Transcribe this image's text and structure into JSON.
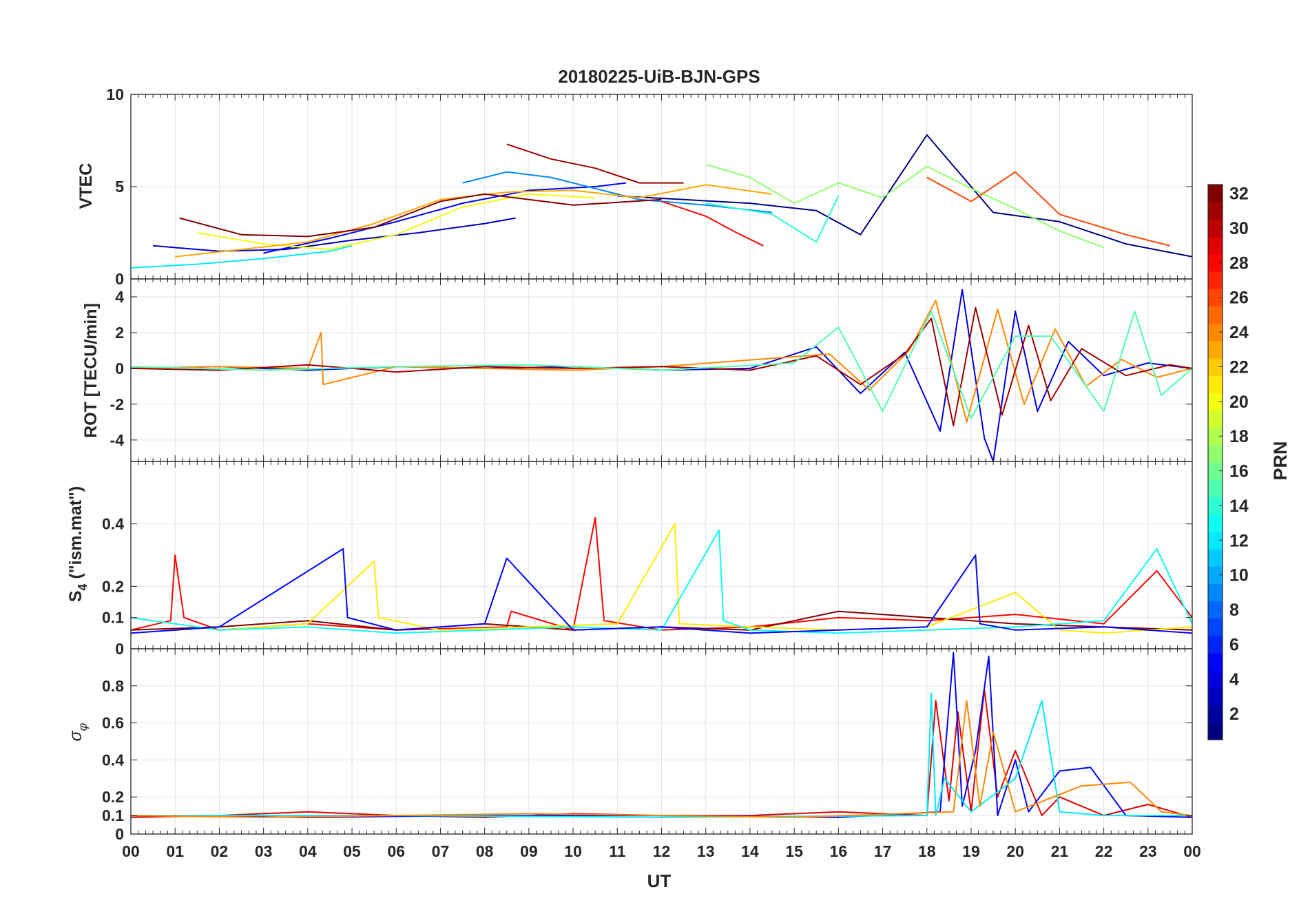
{
  "title": "20180225-UiB-BJN-GPS",
  "x_axis": {
    "label": "UT",
    "range": [
      0,
      24
    ],
    "ticks": [
      0,
      1,
      2,
      3,
      4,
      5,
      6,
      7,
      8,
      9,
      10,
      11,
      12,
      13,
      14,
      15,
      16,
      17,
      18,
      19,
      20,
      21,
      22,
      23,
      24
    ],
    "tick_labels": [
      "00",
      "01",
      "02",
      "03",
      "04",
      "05",
      "06",
      "07",
      "08",
      "09",
      "10",
      "11",
      "12",
      "13",
      "14",
      "15",
      "16",
      "17",
      "18",
      "19",
      "20",
      "21",
      "22",
      "23",
      "00"
    ]
  },
  "colorbar": {
    "label": "PRN",
    "range": [
      1,
      32
    ],
    "ticks": [
      2,
      4,
      6,
      8,
      10,
      12,
      14,
      16,
      18,
      20,
      22,
      24,
      26,
      28,
      30,
      32
    ],
    "tick_labels": [
      "2",
      "4",
      "6",
      "8",
      "10",
      "12",
      "14",
      "16",
      "18",
      "20",
      "22",
      "24",
      "26",
      "28",
      "30",
      "32"
    ],
    "colormap": "jet"
  },
  "chart_data": [
    {
      "type": "line",
      "panel": "vtec",
      "ylabel": "VTEC",
      "ylim": [
        0,
        10
      ],
      "yticks": [
        0,
        5,
        10
      ],
      "ytick_labels": [
        "0",
        "5",
        "10"
      ],
      "grid": true,
      "series": [
        {
          "prn": 1,
          "x": [
            11.0,
            12.5,
            14.0,
            15.5,
            16.5,
            18.0,
            19.5,
            21.0,
            22.5,
            24.0
          ],
          "values": [
            4.5,
            4.3,
            4.1,
            3.7,
            2.4,
            7.8,
            3.6,
            3.1,
            1.9,
            1.2
          ]
        },
        {
          "prn": 3,
          "x": [
            0.5,
            2.0,
            3.5,
            5.0,
            6.5,
            8.0,
            8.7
          ],
          "values": [
            1.8,
            1.5,
            1.6,
            2.1,
            2.5,
            3.0,
            3.3
          ]
        },
        {
          "prn": 5,
          "x": [
            3.0,
            4.5,
            6.0,
            7.5,
            9.0,
            10.5,
            11.2
          ],
          "values": [
            1.4,
            2.2,
            3.1,
            4.1,
            4.8,
            5.0,
            5.2
          ]
        },
        {
          "prn": 9,
          "x": [
            7.5,
            8.5,
            9.5,
            10.5,
            11.5,
            13.0,
            14.5
          ],
          "values": [
            5.2,
            5.8,
            5.5,
            4.9,
            4.3,
            4.0,
            3.6
          ]
        },
        {
          "prn": 12,
          "x": [
            0.0,
            1.5,
            3.0,
            4.5,
            5.0
          ],
          "values": [
            0.6,
            0.8,
            1.1,
            1.5,
            1.8
          ]
        },
        {
          "prn": 14,
          "x": [
            13.0,
            14.5,
            15.5,
            16.0
          ],
          "values": [
            4.1,
            3.5,
            2.0,
            4.5
          ]
        },
        {
          "prn": 17,
          "x": [
            13.0,
            14.0,
            15.0,
            16.0,
            17.0,
            18.0,
            19.0,
            20.0,
            21.0,
            22.0
          ],
          "values": [
            6.2,
            5.5,
            4.1,
            5.2,
            4.4,
            6.1,
            4.9,
            3.8,
            2.6,
            1.7
          ]
        },
        {
          "prn": 20,
          "x": [
            1.5,
            3.0,
            4.5,
            6.0,
            7.5,
            9.0,
            10.5
          ],
          "values": [
            2.5,
            1.9,
            1.6,
            2.4,
            3.9,
            4.6,
            4.4
          ]
        },
        {
          "prn": 23,
          "x": [
            1.0,
            2.5,
            4.0,
            5.5,
            7.0,
            8.5,
            10.0,
            11.5,
            13.0,
            14.5
          ],
          "values": [
            1.2,
            1.6,
            2.0,
            3.0,
            4.3,
            4.7,
            4.8,
            4.4,
            5.1,
            4.6
          ]
        },
        {
          "prn": 26,
          "x": [
            18.0,
            19.0,
            20.0,
            21.0,
            22.5,
            23.5
          ],
          "values": [
            5.5,
            4.2,
            5.8,
            3.5,
            2.4,
            1.8
          ]
        },
        {
          "prn": 28,
          "x": [
            12.0,
            13.0,
            13.7,
            14.3
          ],
          "values": [
            4.2,
            3.4,
            2.5,
            1.8
          ]
        },
        {
          "prn": 31,
          "x": [
            8.5,
            9.5,
            10.5,
            11.5,
            12.5
          ],
          "values": [
            7.3,
            6.5,
            6.0,
            5.2,
            5.2
          ]
        },
        {
          "prn": 32,
          "x": [
            1.1,
            2.5,
            4.0,
            5.5,
            7.0,
            8.0,
            10.0,
            12.0
          ],
          "values": [
            3.3,
            2.4,
            2.3,
            2.8,
            4.2,
            4.6,
            4.0,
            4.3
          ]
        }
      ]
    },
    {
      "type": "line",
      "panel": "rot",
      "ylabel": "ROT [TECU/min]",
      "ylim": [
        -5.2,
        5
      ],
      "yticks": [
        -4,
        -2,
        0,
        2,
        4
      ],
      "ytick_labels": [
        "-4",
        "-2",
        "0",
        "2",
        "4"
      ],
      "grid": true,
      "series": [
        {
          "prn": 4,
          "x": [
            0,
            2,
            4,
            6,
            8,
            10,
            12,
            14,
            15.5,
            16.5,
            17.5,
            18.3,
            18.8,
            19.3,
            19.5,
            20.0,
            20.5,
            21.2,
            22.0,
            23.0,
            24.0
          ],
          "values": [
            0,
            0.1,
            -0.1,
            0.1,
            0,
            0.1,
            -0.1,
            0,
            1.2,
            -1.4,
            0.9,
            -3.5,
            4.4,
            -3.9,
            -5.2,
            3.2,
            -2.4,
            1.5,
            -0.4,
            0.3,
            0
          ]
        },
        {
          "prn": 24,
          "x": [
            0,
            2,
            4,
            4.3,
            4.35,
            6,
            8,
            10,
            12,
            15.8,
            16.7,
            17.6,
            18.2,
            18.9,
            19.6,
            20.2,
            20.9,
            21.6,
            22.4,
            23.2,
            24.0
          ],
          "values": [
            0,
            0.1,
            0,
            2.0,
            -0.9,
            0.1,
            0,
            -0.1,
            0.1,
            0.8,
            -1.2,
            1.0,
            3.8,
            -3.0,
            3.3,
            -2.0,
            2.2,
            -1.0,
            0.5,
            -0.5,
            0
          ]
        },
        {
          "prn": 31,
          "x": [
            0,
            2,
            4,
            6,
            8,
            10,
            12,
            14,
            15.5,
            16.5,
            17.5,
            18.1,
            18.6,
            19.1,
            19.7,
            20.3,
            20.8,
            21.5,
            22.5,
            23.5,
            24.0
          ],
          "values": [
            0,
            -0.1,
            0.2,
            -0.2,
            0.1,
            0,
            0.1,
            -0.1,
            0.7,
            -0.9,
            0.8,
            2.8,
            -3.2,
            3.4,
            -2.6,
            2.4,
            -1.8,
            1.1,
            -0.4,
            0.2,
            0
          ]
        },
        {
          "prn": 15,
          "x": [
            0,
            3,
            6,
            9,
            12,
            15,
            16.0,
            17.0,
            18.1,
            19.0,
            20.0,
            20.8,
            22.0,
            22.7,
            23.3,
            24.0
          ],
          "values": [
            0.1,
            -0.1,
            0.1,
            0.2,
            -0.1,
            0.3,
            2.3,
            -2.4,
            3.2,
            -2.8,
            1.8,
            1.8,
            -2.4,
            3.2,
            -1.5,
            0
          ]
        }
      ]
    },
    {
      "type": "line",
      "panel": "s4",
      "ylabel": "S4 (\"ism.mat\")",
      "ylim": [
        0,
        0.6
      ],
      "yticks": [
        0,
        0.1,
        0.2,
        0.4
      ],
      "ytick_labels": [
        "0",
        "0.1",
        "0.2",
        "0.4"
      ],
      "grid": true,
      "series": [
        {
          "prn": 28,
          "x": [
            0,
            0.9,
            1.0,
            1.2,
            2.0,
            4.0,
            6.0,
            8.5,
            8.6,
            10.0,
            10.5,
            10.7,
            12.0,
            14.0,
            16.0,
            18.0,
            20.0,
            22.0,
            23.2,
            24.0
          ],
          "values": [
            0.06,
            0.09,
            0.3,
            0.1,
            0.06,
            0.08,
            0.06,
            0.07,
            0.12,
            0.06,
            0.42,
            0.09,
            0.06,
            0.07,
            0.1,
            0.09,
            0.11,
            0.08,
            0.25,
            0.1
          ]
        },
        {
          "prn": 32,
          "x": [
            0,
            2,
            4,
            6,
            8,
            10,
            12,
            14,
            16,
            18,
            20,
            22,
            24
          ],
          "values": [
            0.06,
            0.07,
            0.09,
            0.06,
            0.08,
            0.06,
            0.07,
            0.06,
            0.12,
            0.1,
            0.08,
            0.07,
            0.06
          ]
        },
        {
          "prn": 21,
          "x": [
            2,
            4,
            5.5,
            5.6,
            7,
            9,
            11,
            12.3,
            12.4,
            14,
            16,
            18,
            20,
            21,
            22,
            24
          ],
          "values": [
            0.06,
            0.08,
            0.28,
            0.1,
            0.06,
            0.07,
            0.08,
            0.4,
            0.08,
            0.07,
            0.06,
            0.07,
            0.18,
            0.06,
            0.05,
            0.07
          ]
        },
        {
          "prn": 13,
          "x": [
            0,
            2,
            4,
            6,
            8,
            10,
            12,
            13.3,
            13.4,
            14,
            16,
            18,
            20,
            22,
            23.2,
            24
          ],
          "values": [
            0.1,
            0.06,
            0.07,
            0.05,
            0.06,
            0.07,
            0.06,
            0.38,
            0.09,
            0.06,
            0.05,
            0.06,
            0.07,
            0.09,
            0.32,
            0.08
          ]
        },
        {
          "prn": 5,
          "x": [
            0,
            2,
            4.8,
            4.9,
            6,
            8,
            8.5,
            10,
            12,
            14,
            16,
            18,
            19.1,
            19.2,
            20,
            22,
            24
          ],
          "values": [
            0.05,
            0.07,
            0.32,
            0.1,
            0.06,
            0.08,
            0.29,
            0.06,
            0.07,
            0.05,
            0.06,
            0.07,
            0.3,
            0.08,
            0.06,
            0.07,
            0.05
          ]
        }
      ]
    },
    {
      "type": "line",
      "panel": "sigma_phi",
      "ylabel": "σφ",
      "ylim": [
        0,
        1
      ],
      "yticks": [
        0,
        0.1,
        0.2,
        0.4,
        0.6,
        0.8
      ],
      "ytick_labels": [
        "0",
        "0.1",
        "0.2",
        "0.4",
        "0.6",
        "0.8"
      ],
      "grid": true,
      "series": [
        {
          "prn": 29,
          "x": [
            0,
            2,
            4,
            6,
            8,
            10,
            12,
            14,
            16,
            18,
            18.2,
            18.5,
            18.7,
            19.0,
            19.3,
            19.6,
            20.0,
            20.6,
            21.0,
            22.0,
            23.0,
            24.0
          ],
          "values": [
            0.09,
            0.1,
            0.12,
            0.1,
            0.09,
            0.11,
            0.1,
            0.1,
            0.12,
            0.1,
            0.72,
            0.18,
            0.66,
            0.12,
            0.78,
            0.2,
            0.45,
            0.1,
            0.2,
            0.1,
            0.16,
            0.09
          ]
        },
        {
          "prn": 5,
          "x": [
            0,
            4,
            8,
            12,
            16,
            18.3,
            18.6,
            18.8,
            19.1,
            19.4,
            19.6,
            20.0,
            20.3,
            21.0,
            21.7,
            22.5,
            24.0
          ],
          "values": [
            0.1,
            0.09,
            0.1,
            0.1,
            0.09,
            0.12,
            0.98,
            0.15,
            0.45,
            0.96,
            0.1,
            0.4,
            0.12,
            0.34,
            0.36,
            0.1,
            0.09
          ]
        },
        {
          "prn": 12,
          "x": [
            0,
            6,
            12,
            18.0,
            18.1,
            18.2,
            18.4,
            19.0,
            20.0,
            20.6,
            21.0,
            22.0,
            24.0
          ],
          "values": [
            0.1,
            0.1,
            0.09,
            0.1,
            0.76,
            0.1,
            0.3,
            0.12,
            0.3,
            0.72,
            0.12,
            0.1,
            0.1
          ]
        },
        {
          "prn": 24,
          "x": [
            0,
            3,
            6,
            9,
            12,
            15,
            18.6,
            18.9,
            19.2,
            19.5,
            20.0,
            21.5,
            22.6,
            23.3,
            24.0
          ],
          "values": [
            0.1,
            0.09,
            0.1,
            0.11,
            0.1,
            0.09,
            0.12,
            0.72,
            0.15,
            0.55,
            0.12,
            0.26,
            0.28,
            0.12,
            0.1
          ]
        }
      ]
    }
  ]
}
